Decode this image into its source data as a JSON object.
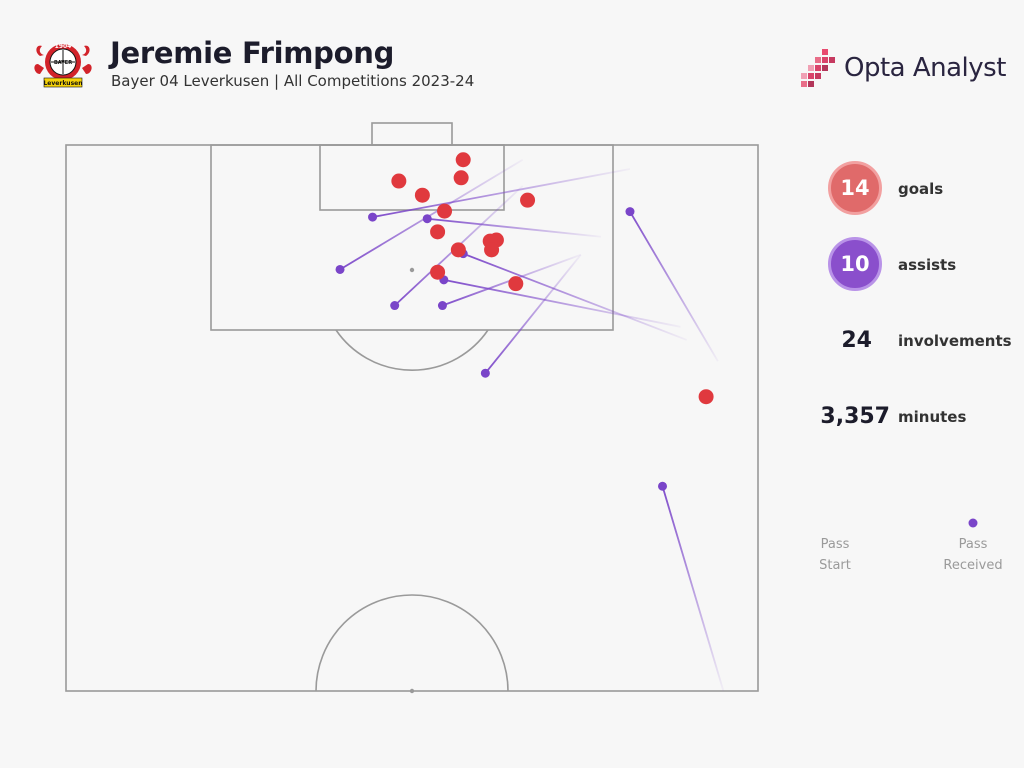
{
  "header": {
    "player_name": "Jeremie Frimpong",
    "subtitle": "Bayer 04 Leverkusen | All Competitions 2023-24",
    "brand": "Opta Analyst",
    "badge_text": [
      "1904",
      "BAYER",
      "Leverkusen"
    ]
  },
  "stats": {
    "goals": {
      "value": "14",
      "label": "goals"
    },
    "assists": {
      "value": "10",
      "label": "assists"
    },
    "involvements": {
      "value": "24",
      "label": "involvements"
    },
    "minutes": {
      "value": "3,357",
      "label": "minutes"
    }
  },
  "legend": {
    "start_label": "Pass Start",
    "end_label": "Pass Received"
  },
  "colors": {
    "goal": "#e0393e",
    "assist": "#7a45c9",
    "pitch_line": "#9a9a9a",
    "background": "#f7f7f7"
  },
  "chart_data": {
    "type": "scatter",
    "description_units": "pitch coordinates: x = 0 (left touchline) to 100 (right touchline); y = 0 (goal line) to 100 (far end of pitch in view)",
    "xlim": [
      0,
      100
    ],
    "ylim": [
      0,
      100
    ],
    "series": [
      {
        "name": "goals",
        "marker": "shot",
        "points": [
          {
            "x": 57.4,
            "y": 2.7
          },
          {
            "x": 57.1,
            "y": 6.0
          },
          {
            "x": 48.1,
            "y": 6.6
          },
          {
            "x": 51.5,
            "y": 9.2
          },
          {
            "x": 66.7,
            "y": 10.1
          },
          {
            "x": 54.7,
            "y": 12.1
          },
          {
            "x": 53.7,
            "y": 15.9
          },
          {
            "x": 62.2,
            "y": 17.4
          },
          {
            "x": 61.3,
            "y": 17.6
          },
          {
            "x": 56.7,
            "y": 19.2
          },
          {
            "x": 61.5,
            "y": 19.2
          },
          {
            "x": 53.7,
            "y": 23.3
          },
          {
            "x": 65.0,
            "y": 25.4
          },
          {
            "x": 92.5,
            "y": 46.1
          }
        ]
      },
      {
        "name": "assists",
        "marker": "pass",
        "passes": [
          {
            "start": {
              "x": 81.5,
              "y": 4.4
            },
            "end": {
              "x": 44.3,
              "y": 13.2
            }
          },
          {
            "start": {
              "x": 66.0,
              "y": 2.7
            },
            "end": {
              "x": 39.6,
              "y": 22.8
            }
          },
          {
            "start": {
              "x": 77.3,
              "y": 16.8
            },
            "end": {
              "x": 52.2,
              "y": 13.5
            }
          },
          {
            "start": {
              "x": 66.0,
              "y": 7.5
            },
            "end": {
              "x": 47.5,
              "y": 29.4
            }
          },
          {
            "start": {
              "x": 88.8,
              "y": 33.3
            },
            "end": {
              "x": 54.6,
              "y": 24.7
            }
          },
          {
            "start": {
              "x": 94.2,
              "y": 39.6
            },
            "end": {
              "x": 81.5,
              "y": 12.2
            }
          },
          {
            "start": {
              "x": 74.4,
              "y": 20.1
            },
            "end": {
              "x": 54.4,
              "y": 29.4
            }
          },
          {
            "start": {
              "x": 89.7,
              "y": 35.7
            },
            "end": {
              "x": 57.4,
              "y": 19.9
            }
          },
          {
            "start": {
              "x": 74.4,
              "y": 20.1
            },
            "end": {
              "x": 60.6,
              "y": 41.8
            }
          },
          {
            "start": {
              "x": 95.0,
              "y": 100.0
            },
            "end": {
              "x": 86.2,
              "y": 62.5
            }
          }
        ]
      }
    ],
    "grid": false,
    "legend": "right"
  }
}
